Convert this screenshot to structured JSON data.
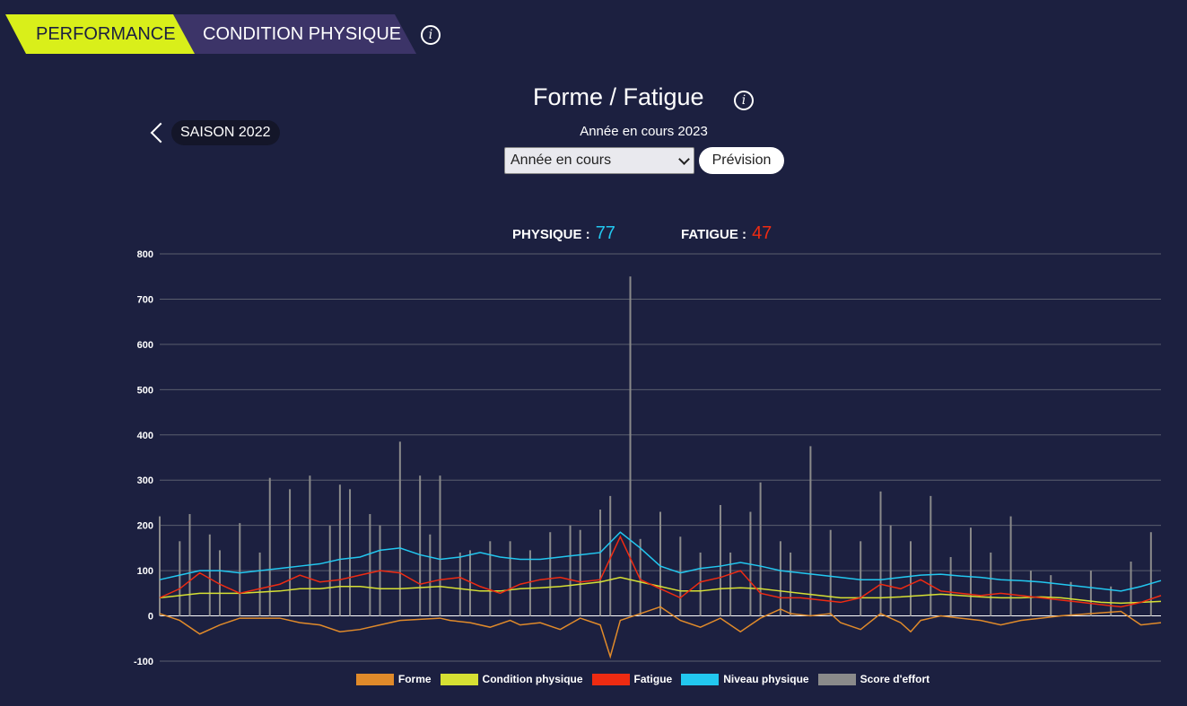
{
  "tabs": {
    "performance": "PERFORMANCE",
    "condition": "CONDITION PHYSIQUE"
  },
  "icons": {
    "info": "i"
  },
  "header": {
    "title": "Forme / Fatigue",
    "prev_season": "SAISON 2022",
    "subtitle": "Année en cours 2023",
    "select_value": "Année en cours",
    "prevision_button": "Prévision"
  },
  "stats": {
    "physique_label": "PHYSIQUE :",
    "physique_value": "77",
    "fatigue_label": "FATIGUE :",
    "fatigue_value": "47"
  },
  "colors": {
    "background": "#1c2040",
    "forme": "#e08a2a",
    "condition": "#d6e033",
    "fatigue": "#ee2b12",
    "niveau": "#22c7ef",
    "effort": "#8a8a8a",
    "physique_value": "#22c7ef",
    "fatigue_value": "#ee2b12"
  },
  "chart_data": {
    "type": "line",
    "y_ticks": [
      "800",
      "700",
      "600",
      "500",
      "400",
      "300",
      "200",
      "100",
      "0",
      "-100"
    ],
    "ylim": [
      -100,
      800
    ],
    "xlim": [
      0,
      100
    ],
    "grid": true,
    "legend_position": "bottom",
    "series": [
      {
        "name": "Forme",
        "key": "forme",
        "x": [
          0,
          2,
          4,
          6,
          8,
          12,
          14,
          16,
          18,
          20,
          22,
          24,
          28,
          29,
          31,
          33,
          35,
          36,
          38,
          40,
          42,
          44,
          45,
          46,
          48,
          50,
          52,
          54,
          56,
          58,
          59,
          60,
          62,
          63,
          65,
          67,
          68,
          70,
          72,
          74,
          75,
          76,
          77,
          78,
          80,
          82,
          84,
          86,
          88,
          90,
          93,
          96,
          98,
          100
        ],
        "y": [
          5,
          -10,
          -40,
          -20,
          -5,
          -5,
          -15,
          -20,
          -35,
          -30,
          -20,
          -10,
          -5,
          -10,
          -15,
          -25,
          -10,
          -20,
          -15,
          -30,
          -5,
          -20,
          -90,
          -10,
          5,
          20,
          -10,
          -25,
          -5,
          -35,
          -20,
          -5,
          15,
          5,
          0,
          5,
          -15,
          -30,
          5,
          -15,
          -35,
          -10,
          -5,
          0,
          -5,
          -10,
          -20,
          -10,
          -5,
          0,
          5,
          10,
          -20,
          -15
        ]
      },
      {
        "name": "Condition physique",
        "key": "condition",
        "x": [
          0,
          2,
          4,
          6,
          8,
          12,
          14,
          16,
          18,
          20,
          22,
          24,
          28,
          30,
          32,
          34,
          36,
          38,
          40,
          42,
          44,
          46,
          48,
          50,
          52,
          54,
          56,
          58,
          60,
          62,
          64,
          66,
          68,
          70,
          72,
          74,
          76,
          78,
          80,
          82,
          84,
          86,
          88,
          90,
          92,
          94,
          96,
          98,
          100
        ],
        "y": [
          40,
          45,
          50,
          50,
          50,
          55,
          60,
          60,
          65,
          65,
          60,
          60,
          65,
          60,
          55,
          55,
          60,
          62,
          65,
          70,
          75,
          85,
          75,
          65,
          55,
          55,
          60,
          62,
          60,
          55,
          50,
          45,
          40,
          40,
          40,
          42,
          45,
          48,
          45,
          42,
          40,
          40,
          42,
          40,
          35,
          30,
          28,
          30,
          32
        ]
      },
      {
        "name": "Fatigue",
        "key": "fatigue",
        "x": [
          0,
          2,
          4,
          6,
          8,
          10,
          12,
          14,
          16,
          18,
          20,
          22,
          24,
          26,
          28,
          30,
          32,
          34,
          36,
          38,
          40,
          42,
          44,
          46,
          48,
          50,
          52,
          54,
          56,
          58,
          60,
          62,
          64,
          66,
          68,
          70,
          72,
          74,
          76,
          78,
          80,
          82,
          84,
          86,
          88,
          90,
          92,
          94,
          96,
          98,
          100
        ],
        "y": [
          40,
          60,
          95,
          70,
          50,
          60,
          70,
          90,
          75,
          80,
          90,
          100,
          95,
          70,
          80,
          85,
          65,
          50,
          70,
          80,
          85,
          75,
          80,
          175,
          80,
          60,
          40,
          75,
          85,
          100,
          50,
          40,
          40,
          35,
          30,
          40,
          70,
          60,
          80,
          55,
          50,
          45,
          50,
          45,
          40,
          35,
          30,
          25,
          20,
          30,
          45
        ]
      },
      {
        "name": "Niveau physique",
        "key": "niveau",
        "x": [
          0,
          2,
          4,
          6,
          8,
          10,
          12,
          14,
          16,
          18,
          20,
          22,
          24,
          26,
          28,
          30,
          32,
          34,
          36,
          38,
          40,
          42,
          44,
          46,
          48,
          50,
          52,
          54,
          56,
          58,
          60,
          62,
          64,
          66,
          68,
          70,
          72,
          74,
          76,
          78,
          80,
          82,
          84,
          86,
          88,
          90,
          92,
          94,
          96,
          98,
          100
        ],
        "y": [
          80,
          90,
          100,
          100,
          95,
          100,
          105,
          110,
          115,
          125,
          130,
          145,
          150,
          135,
          125,
          130,
          140,
          130,
          125,
          125,
          130,
          135,
          140,
          185,
          150,
          110,
          95,
          105,
          110,
          118,
          110,
          100,
          95,
          90,
          85,
          80,
          80,
          85,
          90,
          92,
          88,
          85,
          80,
          78,
          75,
          70,
          65,
          60,
          55,
          65,
          78
        ]
      },
      {
        "name": "Score d'effort",
        "key": "effort",
        "type": "bar",
        "x": [
          0,
          2,
          3,
          5,
          6,
          8,
          10,
          11,
          13,
          15,
          17,
          18,
          19,
          21,
          22,
          24,
          26,
          27,
          28,
          30,
          31,
          33,
          35,
          37,
          39,
          41,
          42,
          44,
          45,
          47,
          48,
          50,
          52,
          54,
          56,
          57,
          59,
          60,
          62,
          63,
          65,
          67,
          70,
          72,
          73,
          75,
          77,
          79,
          81,
          83,
          85,
          87,
          89,
          91,
          93,
          95,
          97,
          99
        ],
        "y": [
          220,
          165,
          225,
          180,
          145,
          205,
          140,
          305,
          280,
          310,
          200,
          290,
          280,
          225,
          200,
          385,
          310,
          180,
          310,
          140,
          145,
          165,
          165,
          145,
          185,
          200,
          190,
          235,
          265,
          750,
          170,
          230,
          175,
          140,
          245,
          140,
          230,
          295,
          165,
          140,
          375,
          190,
          165,
          275,
          200,
          165,
          265,
          130,
          195,
          140,
          220,
          100,
          90,
          75,
          100,
          65,
          120,
          185
        ]
      }
    ]
  }
}
